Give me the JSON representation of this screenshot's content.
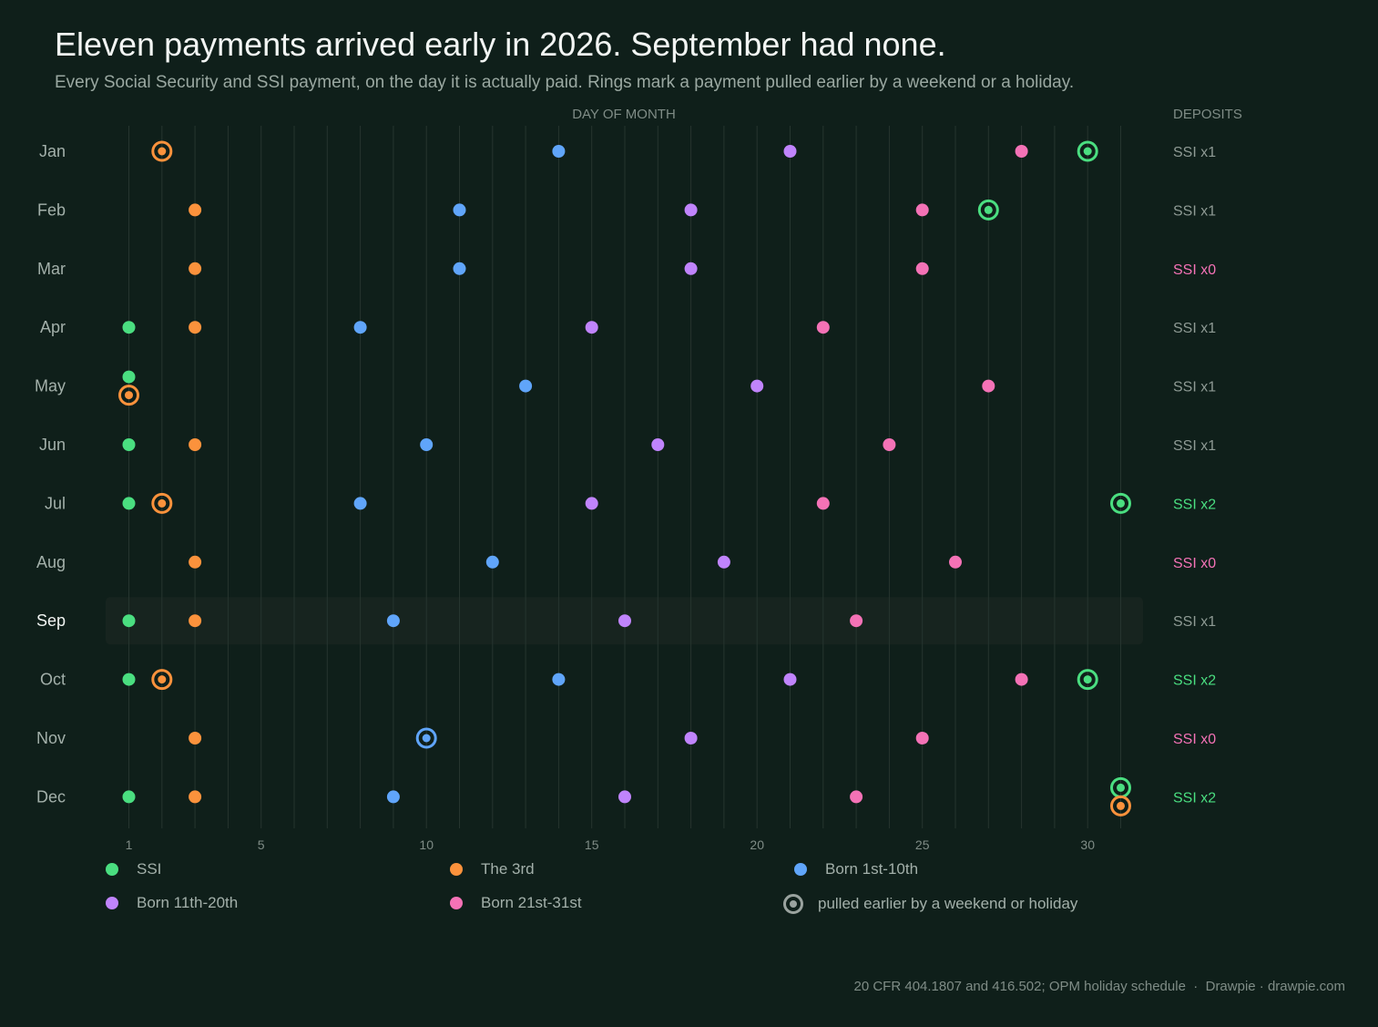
{
  "title": "Eleven payments arrived early in 2026. September had none.",
  "subtitle": "Every Social Security and SSI payment, on the day it is actually paid. Rings mark a payment pulled earlier by a weekend or a holiday.",
  "footer": {
    "source": "20 CFR 404.1807 and 416.502; OPM holiday schedule",
    "separator": "·",
    "brand": "Drawpie · drawpie.com"
  },
  "colors": {
    "background": "#0f1f1a",
    "highlight_band": "#17241f",
    "grid": "#26352f",
    "ssi": "#4ade80",
    "the_3rd": "#fb923c",
    "born_1_10": "#60a5fa",
    "born_11_20": "#c084fc",
    "born_21_31": "#f472b6",
    "ring_legend": "#9aa39f",
    "deposit_normal": "#8e9a94",
    "deposit_zero": "#f472b6",
    "deposit_double": "#4ade80"
  },
  "legend": [
    {
      "key": "ssi",
      "label": "SSI",
      "type": "dot"
    },
    {
      "key": "the_3rd",
      "label": "The 3rd",
      "type": "dot"
    },
    {
      "key": "born_1_10",
      "label": "Born 1st-10th",
      "type": "dot"
    },
    {
      "key": "born_11_20",
      "label": "Born 11th-20th",
      "type": "dot"
    },
    {
      "key": "born_21_31",
      "label": "Born 21st-31st",
      "type": "dot"
    },
    {
      "key": "ring",
      "label": "pulled earlier by a weekend or holiday",
      "type": "ring"
    }
  ],
  "chart_data": {
    "type": "scatter",
    "xlabel": "DAY OF MONTH",
    "right_column_label": "DEPOSITS",
    "xlim": [
      1,
      31
    ],
    "x_ticks": [
      1,
      5,
      10,
      15,
      20,
      25,
      30
    ],
    "highlight_month": "Sep",
    "months": [
      {
        "month": "Jan",
        "deposits": "SSI x1",
        "payments": [
          {
            "series": "ssi",
            "day": 30,
            "early": true
          },
          {
            "series": "the_3rd",
            "day": 2,
            "early": true
          },
          {
            "series": "born_1_10",
            "day": 14,
            "early": false
          },
          {
            "series": "born_11_20",
            "day": 21,
            "early": false
          },
          {
            "series": "born_21_31",
            "day": 28,
            "early": false
          }
        ]
      },
      {
        "month": "Feb",
        "deposits": "SSI x1",
        "payments": [
          {
            "series": "ssi",
            "day": 27,
            "early": true
          },
          {
            "series": "the_3rd",
            "day": 3,
            "early": false
          },
          {
            "series": "born_1_10",
            "day": 11,
            "early": false
          },
          {
            "series": "born_11_20",
            "day": 18,
            "early": false
          },
          {
            "series": "born_21_31",
            "day": 25,
            "early": false
          }
        ]
      },
      {
        "month": "Mar",
        "deposits": "SSI x0",
        "payments": [
          {
            "series": "the_3rd",
            "day": 3,
            "early": false
          },
          {
            "series": "born_1_10",
            "day": 11,
            "early": false
          },
          {
            "series": "born_11_20",
            "day": 18,
            "early": false
          },
          {
            "series": "born_21_31",
            "day": 25,
            "early": false
          }
        ]
      },
      {
        "month": "Apr",
        "deposits": "SSI x1",
        "payments": [
          {
            "series": "ssi",
            "day": 1,
            "early": false
          },
          {
            "series": "the_3rd",
            "day": 3,
            "early": false
          },
          {
            "series": "born_1_10",
            "day": 8,
            "early": false
          },
          {
            "series": "born_11_20",
            "day": 15,
            "early": false
          },
          {
            "series": "born_21_31",
            "day": 22,
            "early": false
          }
        ]
      },
      {
        "month": "May",
        "deposits": "SSI x1",
        "payments": [
          {
            "series": "ssi",
            "day": 1,
            "early": false
          },
          {
            "series": "the_3rd",
            "day": 1,
            "early": true
          },
          {
            "series": "born_1_10",
            "day": 13,
            "early": false
          },
          {
            "series": "born_11_20",
            "day": 20,
            "early": false
          },
          {
            "series": "born_21_31",
            "day": 27,
            "early": false
          }
        ]
      },
      {
        "month": "Jun",
        "deposits": "SSI x1",
        "payments": [
          {
            "series": "ssi",
            "day": 1,
            "early": false
          },
          {
            "series": "the_3rd",
            "day": 3,
            "early": false
          },
          {
            "series": "born_1_10",
            "day": 10,
            "early": false
          },
          {
            "series": "born_11_20",
            "day": 17,
            "early": false
          },
          {
            "series": "born_21_31",
            "day": 24,
            "early": false
          }
        ]
      },
      {
        "month": "Jul",
        "deposits": "SSI x2",
        "payments": [
          {
            "series": "ssi",
            "day": 1,
            "early": false
          },
          {
            "series": "ssi",
            "day": 31,
            "early": true
          },
          {
            "series": "the_3rd",
            "day": 2,
            "early": true
          },
          {
            "series": "born_1_10",
            "day": 8,
            "early": false
          },
          {
            "series": "born_11_20",
            "day": 15,
            "early": false
          },
          {
            "series": "born_21_31",
            "day": 22,
            "early": false
          }
        ]
      },
      {
        "month": "Aug",
        "deposits": "SSI x0",
        "payments": [
          {
            "series": "the_3rd",
            "day": 3,
            "early": false
          },
          {
            "series": "born_1_10",
            "day": 12,
            "early": false
          },
          {
            "series": "born_11_20",
            "day": 19,
            "early": false
          },
          {
            "series": "born_21_31",
            "day": 26,
            "early": false
          }
        ]
      },
      {
        "month": "Sep",
        "deposits": "SSI x1",
        "payments": [
          {
            "series": "ssi",
            "day": 1,
            "early": false
          },
          {
            "series": "the_3rd",
            "day": 3,
            "early": false
          },
          {
            "series": "born_1_10",
            "day": 9,
            "early": false
          },
          {
            "series": "born_11_20",
            "day": 16,
            "early": false
          },
          {
            "series": "born_21_31",
            "day": 23,
            "early": false
          }
        ]
      },
      {
        "month": "Oct",
        "deposits": "SSI x2",
        "payments": [
          {
            "series": "ssi",
            "day": 1,
            "early": false
          },
          {
            "series": "ssi",
            "day": 30,
            "early": true
          },
          {
            "series": "the_3rd",
            "day": 2,
            "early": true
          },
          {
            "series": "born_1_10",
            "day": 14,
            "early": false
          },
          {
            "series": "born_11_20",
            "day": 21,
            "early": false
          },
          {
            "series": "born_21_31",
            "day": 28,
            "early": false
          }
        ]
      },
      {
        "month": "Nov",
        "deposits": "SSI x0",
        "payments": [
          {
            "series": "the_3rd",
            "day": 3,
            "early": false
          },
          {
            "series": "born_1_10",
            "day": 10,
            "early": true
          },
          {
            "series": "born_11_20",
            "day": 18,
            "early": false
          },
          {
            "series": "born_21_31",
            "day": 25,
            "early": false
          }
        ]
      },
      {
        "month": "Dec",
        "deposits": "SSI x2",
        "payments": [
          {
            "series": "ssi",
            "day": 1,
            "early": false
          },
          {
            "series": "ssi",
            "day": 31,
            "early": true
          },
          {
            "series": "the_3rd",
            "day": 3,
            "early": false
          },
          {
            "series": "the_3rd",
            "day": 31,
            "early": true
          },
          {
            "series": "born_1_10",
            "day": 9,
            "early": false
          },
          {
            "series": "born_11_20",
            "day": 16,
            "early": false
          },
          {
            "series": "born_21_31",
            "day": 23,
            "early": false
          }
        ]
      }
    ]
  }
}
